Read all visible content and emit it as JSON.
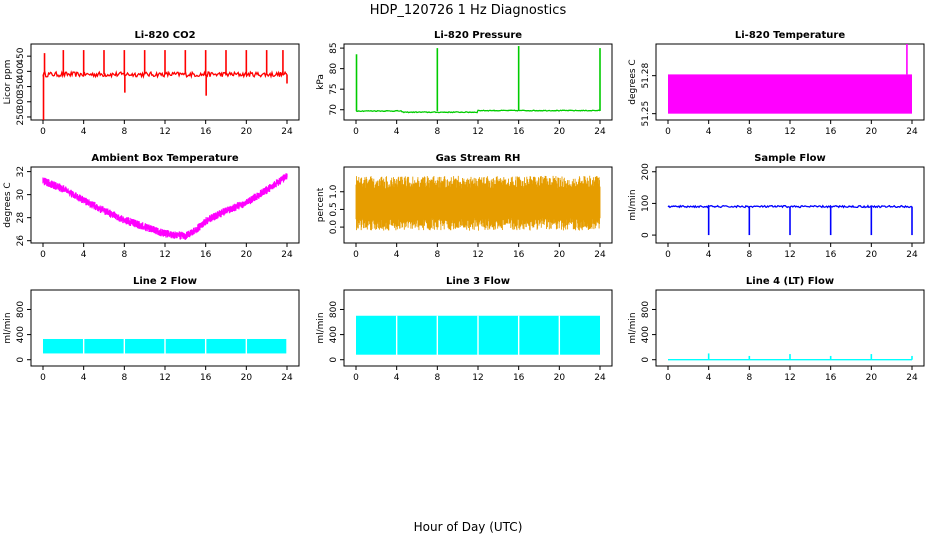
{
  "page": {
    "title": "HDP_120726  1 Hz Diagnostics",
    "xlabel": "Hour of Day (UTC)"
  },
  "chart_data": [
    {
      "type": "line",
      "title": "Li-820 CO2",
      "ylabel": "Licor ppm",
      "color": "#ff0000",
      "xlim": [
        0,
        24
      ],
      "ylim": [
        240,
        490
      ],
      "xticks": [
        "0",
        "4",
        "8",
        "12",
        "16",
        "20",
        "24"
      ],
      "yticks": [
        250,
        300,
        350,
        400,
        450
      ],
      "baseline": 390,
      "noise": 8,
      "spikes": [
        {
          "x": 0.05,
          "y": 240
        },
        {
          "x": 0.15,
          "y": 460
        },
        {
          "x": 2,
          "y": 470
        },
        {
          "x": 4,
          "y": 470
        },
        {
          "x": 6,
          "y": 470
        },
        {
          "x": 8,
          "y": 470
        },
        {
          "x": 8.05,
          "y": 330
        },
        {
          "x": 10,
          "y": 470
        },
        {
          "x": 12,
          "y": 470
        },
        {
          "x": 14,
          "y": 470
        },
        {
          "x": 16,
          "y": 470
        },
        {
          "x": 16.05,
          "y": 320
        },
        {
          "x": 18,
          "y": 470
        },
        {
          "x": 20,
          "y": 470
        },
        {
          "x": 22,
          "y": 470
        },
        {
          "x": 23.6,
          "y": 470
        },
        {
          "x": 24,
          "y": 360
        }
      ]
    },
    {
      "type": "line",
      "title": "Li-820 Pressure",
      "ylabel": "kPa",
      "color": "#00cc00",
      "xlim": [
        0,
        24
      ],
      "ylim": [
        67.5,
        86
      ],
      "xticks": [
        "0",
        "4",
        "8",
        "12",
        "16",
        "20",
        "24"
      ],
      "yticks": [
        70,
        75,
        80,
        85
      ],
      "baseline": 69.7,
      "noise": 0.1,
      "steps": [
        {
          "x": 0.3,
          "y": 69.7
        },
        {
          "x": 4.5,
          "y": 69.4
        },
        {
          "x": 12,
          "y": 69.8
        }
      ],
      "spikes": [
        {
          "x": 0.05,
          "y": 83.5
        },
        {
          "x": 8,
          "y": 85
        },
        {
          "x": 16,
          "y": 85.5
        },
        {
          "x": 24,
          "y": 85
        }
      ]
    },
    {
      "type": "area",
      "title": "Li-820 Temperature",
      "ylabel": "degrees C",
      "color": "#ff00ff",
      "xlim": [
        0,
        24
      ],
      "ylim": [
        51.245,
        51.305
      ],
      "xticks": [
        "0",
        "4",
        "8",
        "12",
        "16",
        "20",
        "24"
      ],
      "yticks": [
        51.25,
        51.28
      ],
      "band_low": 51.25,
      "band_high": 51.281,
      "spikes": [
        {
          "x": 23.5,
          "y": 51.305
        }
      ]
    },
    {
      "type": "line",
      "title": "Ambient Box Temperature",
      "ylabel": "degrees C",
      "color": "#ff00ff",
      "xlim": [
        0,
        24
      ],
      "ylim": [
        25.8,
        32.4
      ],
      "xticks": [
        "0",
        "4",
        "8",
        "12",
        "16",
        "20",
        "24"
      ],
      "yticks": [
        26,
        28,
        30,
        32
      ],
      "noise": 0.35,
      "points": [
        {
          "x": 0,
          "y": 31.2
        },
        {
          "x": 2,
          "y": 30.5
        },
        {
          "x": 4,
          "y": 29.5
        },
        {
          "x": 6,
          "y": 28.6
        },
        {
          "x": 8,
          "y": 27.8
        },
        {
          "x": 10,
          "y": 27.2
        },
        {
          "x": 12,
          "y": 26.6
        },
        {
          "x": 14,
          "y": 26.4
        },
        {
          "x": 15,
          "y": 26.9
        },
        {
          "x": 16,
          "y": 27.7
        },
        {
          "x": 18,
          "y": 28.6
        },
        {
          "x": 20,
          "y": 29.3
        },
        {
          "x": 22,
          "y": 30.4
        },
        {
          "x": 24,
          "y": 31.6
        }
      ]
    },
    {
      "type": "line",
      "title": "Gas Stream RH",
      "ylabel": "percent",
      "color": "#e69d00",
      "xlim": [
        0,
        24
      ],
      "ylim": [
        -0.45,
        1.7
      ],
      "xticks": [
        "0",
        "4",
        "8",
        "12",
        "16",
        "20",
        "24"
      ],
      "yticks": [
        "0.0",
        "0.5",
        "1.0"
      ],
      "band_low": -0.1,
      "band_high": 1.45,
      "center": 0.6
    },
    {
      "type": "line",
      "title": "Sample Flow",
      "ylabel": "ml/min",
      "color": "#0000ff",
      "xlim": [
        0,
        24
      ],
      "ylim": [
        -25,
        215
      ],
      "xticks": [
        "0",
        "4",
        "8",
        "12",
        "16",
        "20",
        "24"
      ],
      "yticks": [
        0,
        100,
        200
      ],
      "baseline": 90,
      "noise": 3,
      "spikes": [
        {
          "x": 4,
          "y": 0
        },
        {
          "x": 8,
          "y": 0
        },
        {
          "x": 12,
          "y": 0
        },
        {
          "x": 16,
          "y": 0
        },
        {
          "x": 20,
          "y": 0
        },
        {
          "x": 24,
          "y": 0
        }
      ]
    },
    {
      "type": "area",
      "title": "Line 2 Flow",
      "ylabel": "ml/min",
      "color": "#00ffff",
      "xlim": [
        0,
        24
      ],
      "ylim": [
        -100,
        1110
      ],
      "xticks": [
        "0",
        "4",
        "8",
        "12",
        "16",
        "20",
        "24"
      ],
      "yticks": [
        0,
        400,
        800
      ],
      "band_low": 100,
      "band_high": 330,
      "gaps": [
        4,
        8,
        12,
        16,
        20,
        24
      ]
    },
    {
      "type": "area",
      "title": "Line 3 Flow",
      "ylabel": "ml/min",
      "color": "#00ffff",
      "xlim": [
        0,
        24
      ],
      "ylim": [
        -100,
        1110
      ],
      "xticks": [
        "0",
        "4",
        "8",
        "12",
        "16",
        "20",
        "24"
      ],
      "yticks": [
        0,
        400,
        800
      ],
      "band_low": 80,
      "band_high": 700,
      "gaps": [
        4,
        8,
        12,
        16,
        20
      ]
    },
    {
      "type": "line",
      "title": "Line 4 (LT) Flow",
      "ylabel": "ml/min",
      "color": "#00ffff",
      "xlim": [
        0,
        24
      ],
      "ylim": [
        -100,
        1110
      ],
      "xticks": [
        "0",
        "4",
        "8",
        "12",
        "16",
        "20",
        "24"
      ],
      "yticks": [
        0,
        400,
        800
      ],
      "baseline": 0,
      "noise": 0,
      "spikes": [
        {
          "x": 4,
          "y": 100
        },
        {
          "x": 8,
          "y": 60
        },
        {
          "x": 12,
          "y": 90
        },
        {
          "x": 16,
          "y": 60
        },
        {
          "x": 20,
          "y": 90
        },
        {
          "x": 24,
          "y": 60
        }
      ]
    }
  ]
}
